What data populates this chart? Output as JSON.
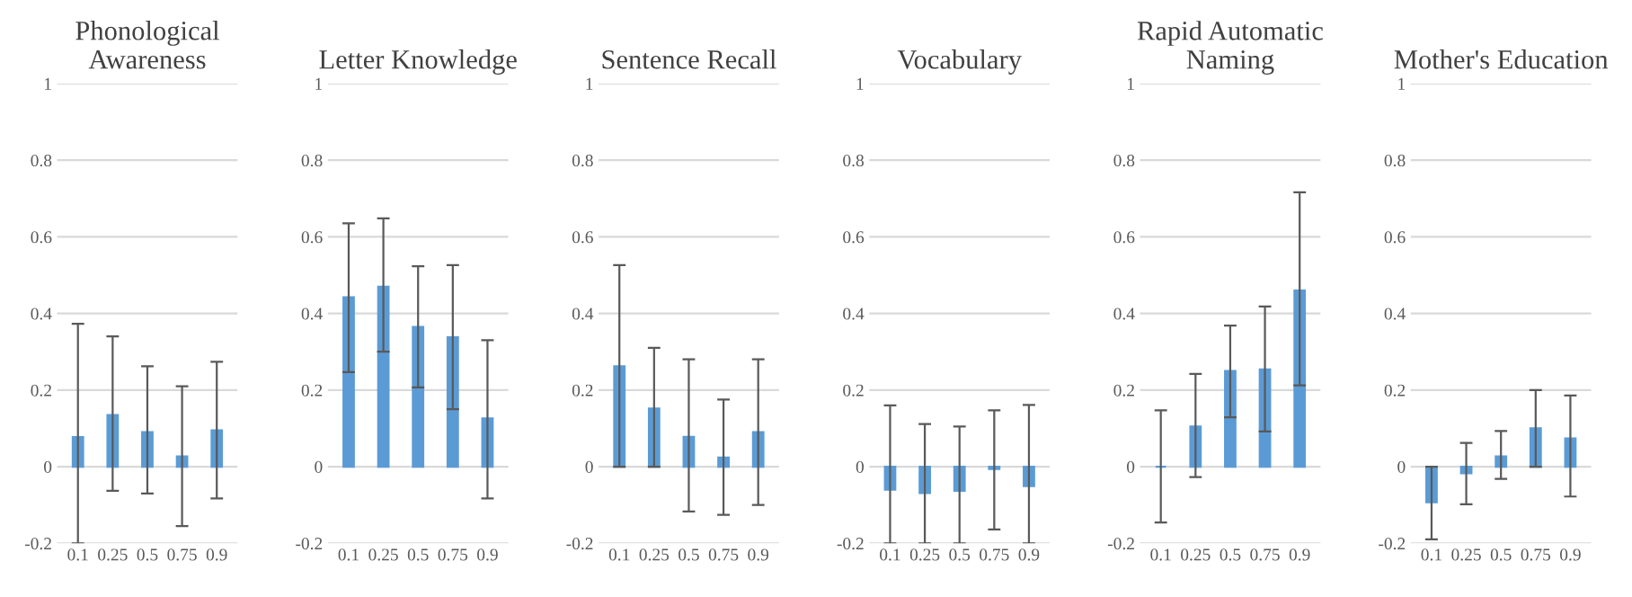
{
  "chart_data": [
    {
      "type": "bar",
      "title": "Phonological\nAwareness",
      "categories": [
        "0.1",
        "0.25",
        "0.5",
        "0.75",
        "0.9"
      ],
      "series": [
        {
          "color": "#5b9bd5",
          "values": [
            0.077,
            0.135,
            0.09,
            0.027,
            0.095
          ],
          "errors": [
            [
              -0.2,
              0.373
            ],
            [
              -0.063,
              0.34
            ],
            [
              -0.07,
              0.262
            ],
            [
              -0.155,
              0.21
            ],
            [
              -0.083,
              0.274
            ]
          ]
        }
      ],
      "ylim": [
        -0.2,
        1
      ],
      "yticks": [
        -0.2,
        0,
        0.2,
        0.4,
        0.6,
        0.8,
        1
      ],
      "grid": "y"
    },
    {
      "type": "bar",
      "title": "Letter Knowledge",
      "categories": [
        "0.1",
        "0.25",
        "0.5",
        "0.75",
        "0.9"
      ],
      "series": [
        {
          "color": "#5b9bd5",
          "values": [
            0.442,
            0.47,
            0.365,
            0.338,
            0.126
          ],
          "errors": [
            [
              0.247,
              0.635
            ],
            [
              0.3,
              0.648
            ],
            [
              0.207,
              0.523
            ],
            [
              0.15,
              0.526
            ],
            [
              -0.083,
              0.33
            ]
          ]
        }
      ],
      "ylim": [
        -0.2,
        1
      ],
      "yticks": [
        -0.2,
        0,
        0.2,
        0.4,
        0.6,
        0.8,
        1
      ],
      "grid": "y"
    },
    {
      "type": "bar",
      "title": "Sentence Recall",
      "categories": [
        "0.1",
        "0.25",
        "0.5",
        "0.75",
        "0.9"
      ],
      "series": [
        {
          "color": "#5b9bd5",
          "values": [
            0.262,
            0.152,
            0.078,
            0.024,
            0.09
          ],
          "errors": [
            [
              0,
              0.526
            ],
            [
              0,
              0.31
            ],
            [
              -0.117,
              0.28
            ],
            [
              -0.126,
              0.175
            ],
            [
              -0.1,
              0.28
            ]
          ]
        }
      ],
      "ylim": [
        -0.2,
        1
      ],
      "yticks": [
        -0.2,
        0,
        0.2,
        0.4,
        0.6,
        0.8,
        1
      ],
      "grid": "y"
    },
    {
      "type": "bar",
      "title": "Vocabulary",
      "categories": [
        "0.1",
        "0.25",
        "0.5",
        "0.75",
        "0.9"
      ],
      "series": [
        {
          "color": "#5b9bd5",
          "values": [
            -0.06,
            -0.069,
            -0.063,
            -0.006,
            -0.051
          ],
          "errors": [
            [
              -0.2,
              0.16
            ],
            [
              -0.2,
              0.111
            ],
            [
              -0.2,
              0.105
            ],
            [
              -0.164,
              0.147
            ],
            [
              -0.2,
              0.161
            ]
          ]
        }
      ],
      "ylim": [
        -0.2,
        1
      ],
      "yticks": [
        -0.2,
        0,
        0.2,
        0.4,
        0.6,
        0.8,
        1
      ],
      "grid": "y"
    },
    {
      "type": "bar",
      "title": "Rapid Automatic\nNaming",
      "categories": [
        "0.1",
        "0.25",
        "0.5",
        "0.75",
        "0.9"
      ],
      "series": [
        {
          "color": "#5b9bd5",
          "values": [
            0,
            0.105,
            0.25,
            0.254,
            0.46
          ],
          "errors": [
            [
              -0.146,
              0.147
            ],
            [
              -0.027,
              0.242
            ],
            [
              0.129,
              0.368
            ],
            [
              0.092,
              0.418
            ],
            [
              0.212,
              0.716
            ]
          ]
        }
      ],
      "ylim": [
        -0.2,
        1
      ],
      "yticks": [
        -0.2,
        0,
        0.2,
        0.4,
        0.6,
        0.8,
        1
      ],
      "grid": "y"
    },
    {
      "type": "bar",
      "title": "Mother's Education",
      "categories": [
        "0.1",
        "0.25",
        "0.5",
        "0.75",
        "0.9"
      ],
      "series": [
        {
          "color": "#5b9bd5",
          "values": [
            -0.093,
            -0.017,
            0.027,
            0.1,
            0.074
          ],
          "errors": [
            [
              -0.19,
              0
            ],
            [
              -0.098,
              0.062
            ],
            [
              -0.032,
              0.093
            ],
            [
              0,
              0.2
            ],
            [
              -0.078,
              0.186
            ]
          ]
        }
      ],
      "ylim": [
        -0.2,
        1
      ],
      "yticks": [
        -0.2,
        0,
        0.2,
        0.4,
        0.6,
        0.8,
        1
      ],
      "grid": "y"
    }
  ]
}
